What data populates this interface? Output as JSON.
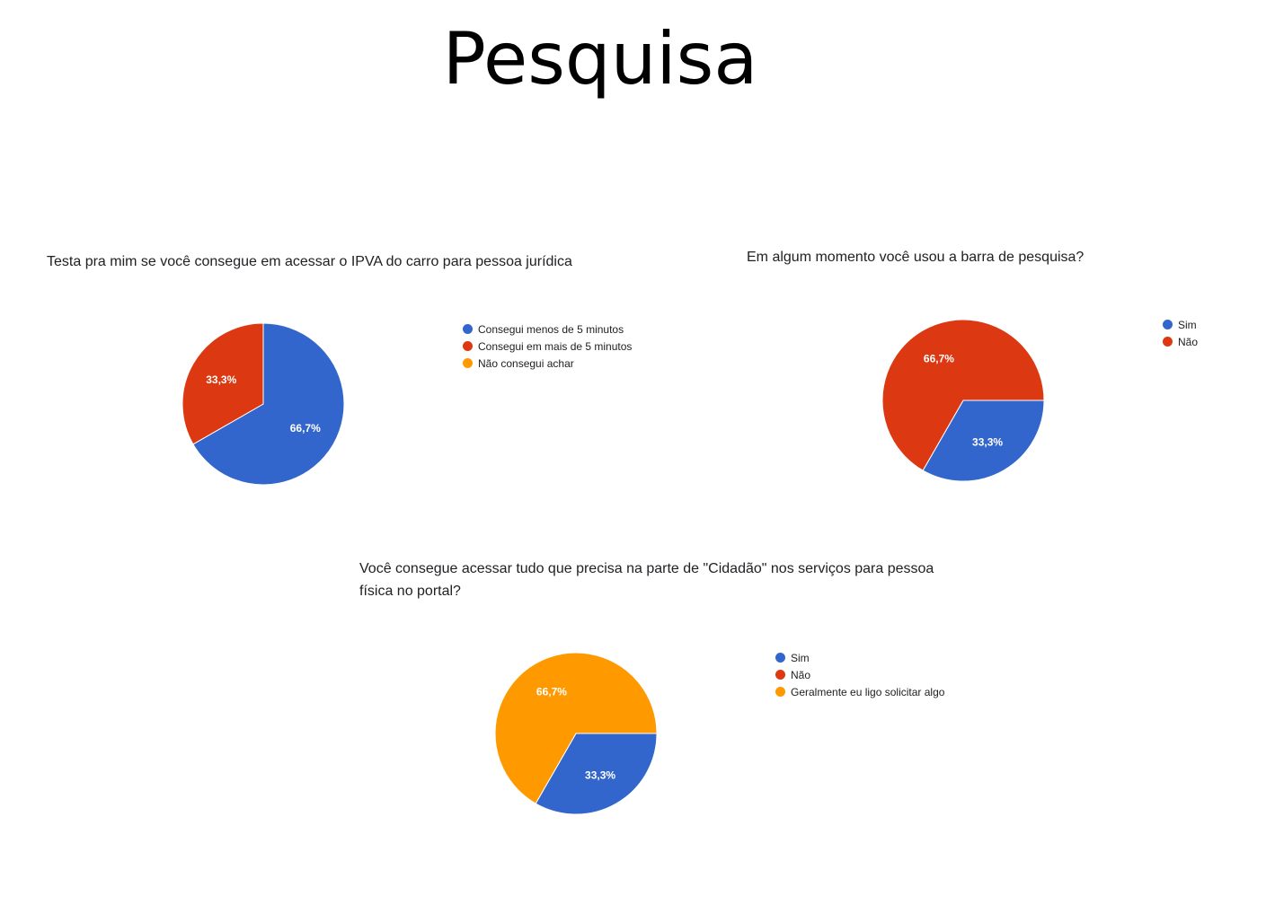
{
  "page": {
    "title": "Pesquisa"
  },
  "colors": {
    "blue": "#3366cc",
    "red": "#dc3912",
    "orange": "#ff9900"
  },
  "chart_data": [
    {
      "type": "pie",
      "title": "Testa pra mim se você consegue em acessar o IPVA do carro para pessoa jurídica",
      "legend_position": "right",
      "categories": [
        "Consegui menos de 5 minutos",
        "Consegui em mais de 5 minutos",
        "Não consegui achar"
      ],
      "values": [
        66.7,
        33.3,
        0
      ],
      "labels": [
        "66,7%",
        "33,3%",
        ""
      ],
      "colors": [
        "#3366cc",
        "#dc3912",
        "#ff9900"
      ]
    },
    {
      "type": "pie",
      "title": "Em algum momento você usou a barra de pesquisa?",
      "legend_position": "right",
      "categories": [
        "Sim",
        "Não"
      ],
      "values": [
        33.3,
        66.7
      ],
      "labels": [
        "33,3%",
        "66,7%"
      ],
      "colors": [
        "#3366cc",
        "#dc3912"
      ]
    },
    {
      "type": "pie",
      "title": "Você consegue acessar tudo que precisa na parte de \"Cidadão\" nos serviços para pessoa física no portal?",
      "legend_position": "right",
      "categories": [
        "Sim",
        "Não",
        "Geralmente eu ligo solicitar algo"
      ],
      "values": [
        33.3,
        0,
        66.7
      ],
      "labels": [
        "33,3%",
        "",
        "66,7%"
      ],
      "colors": [
        "#3366cc",
        "#dc3912",
        "#ff9900"
      ]
    }
  ]
}
